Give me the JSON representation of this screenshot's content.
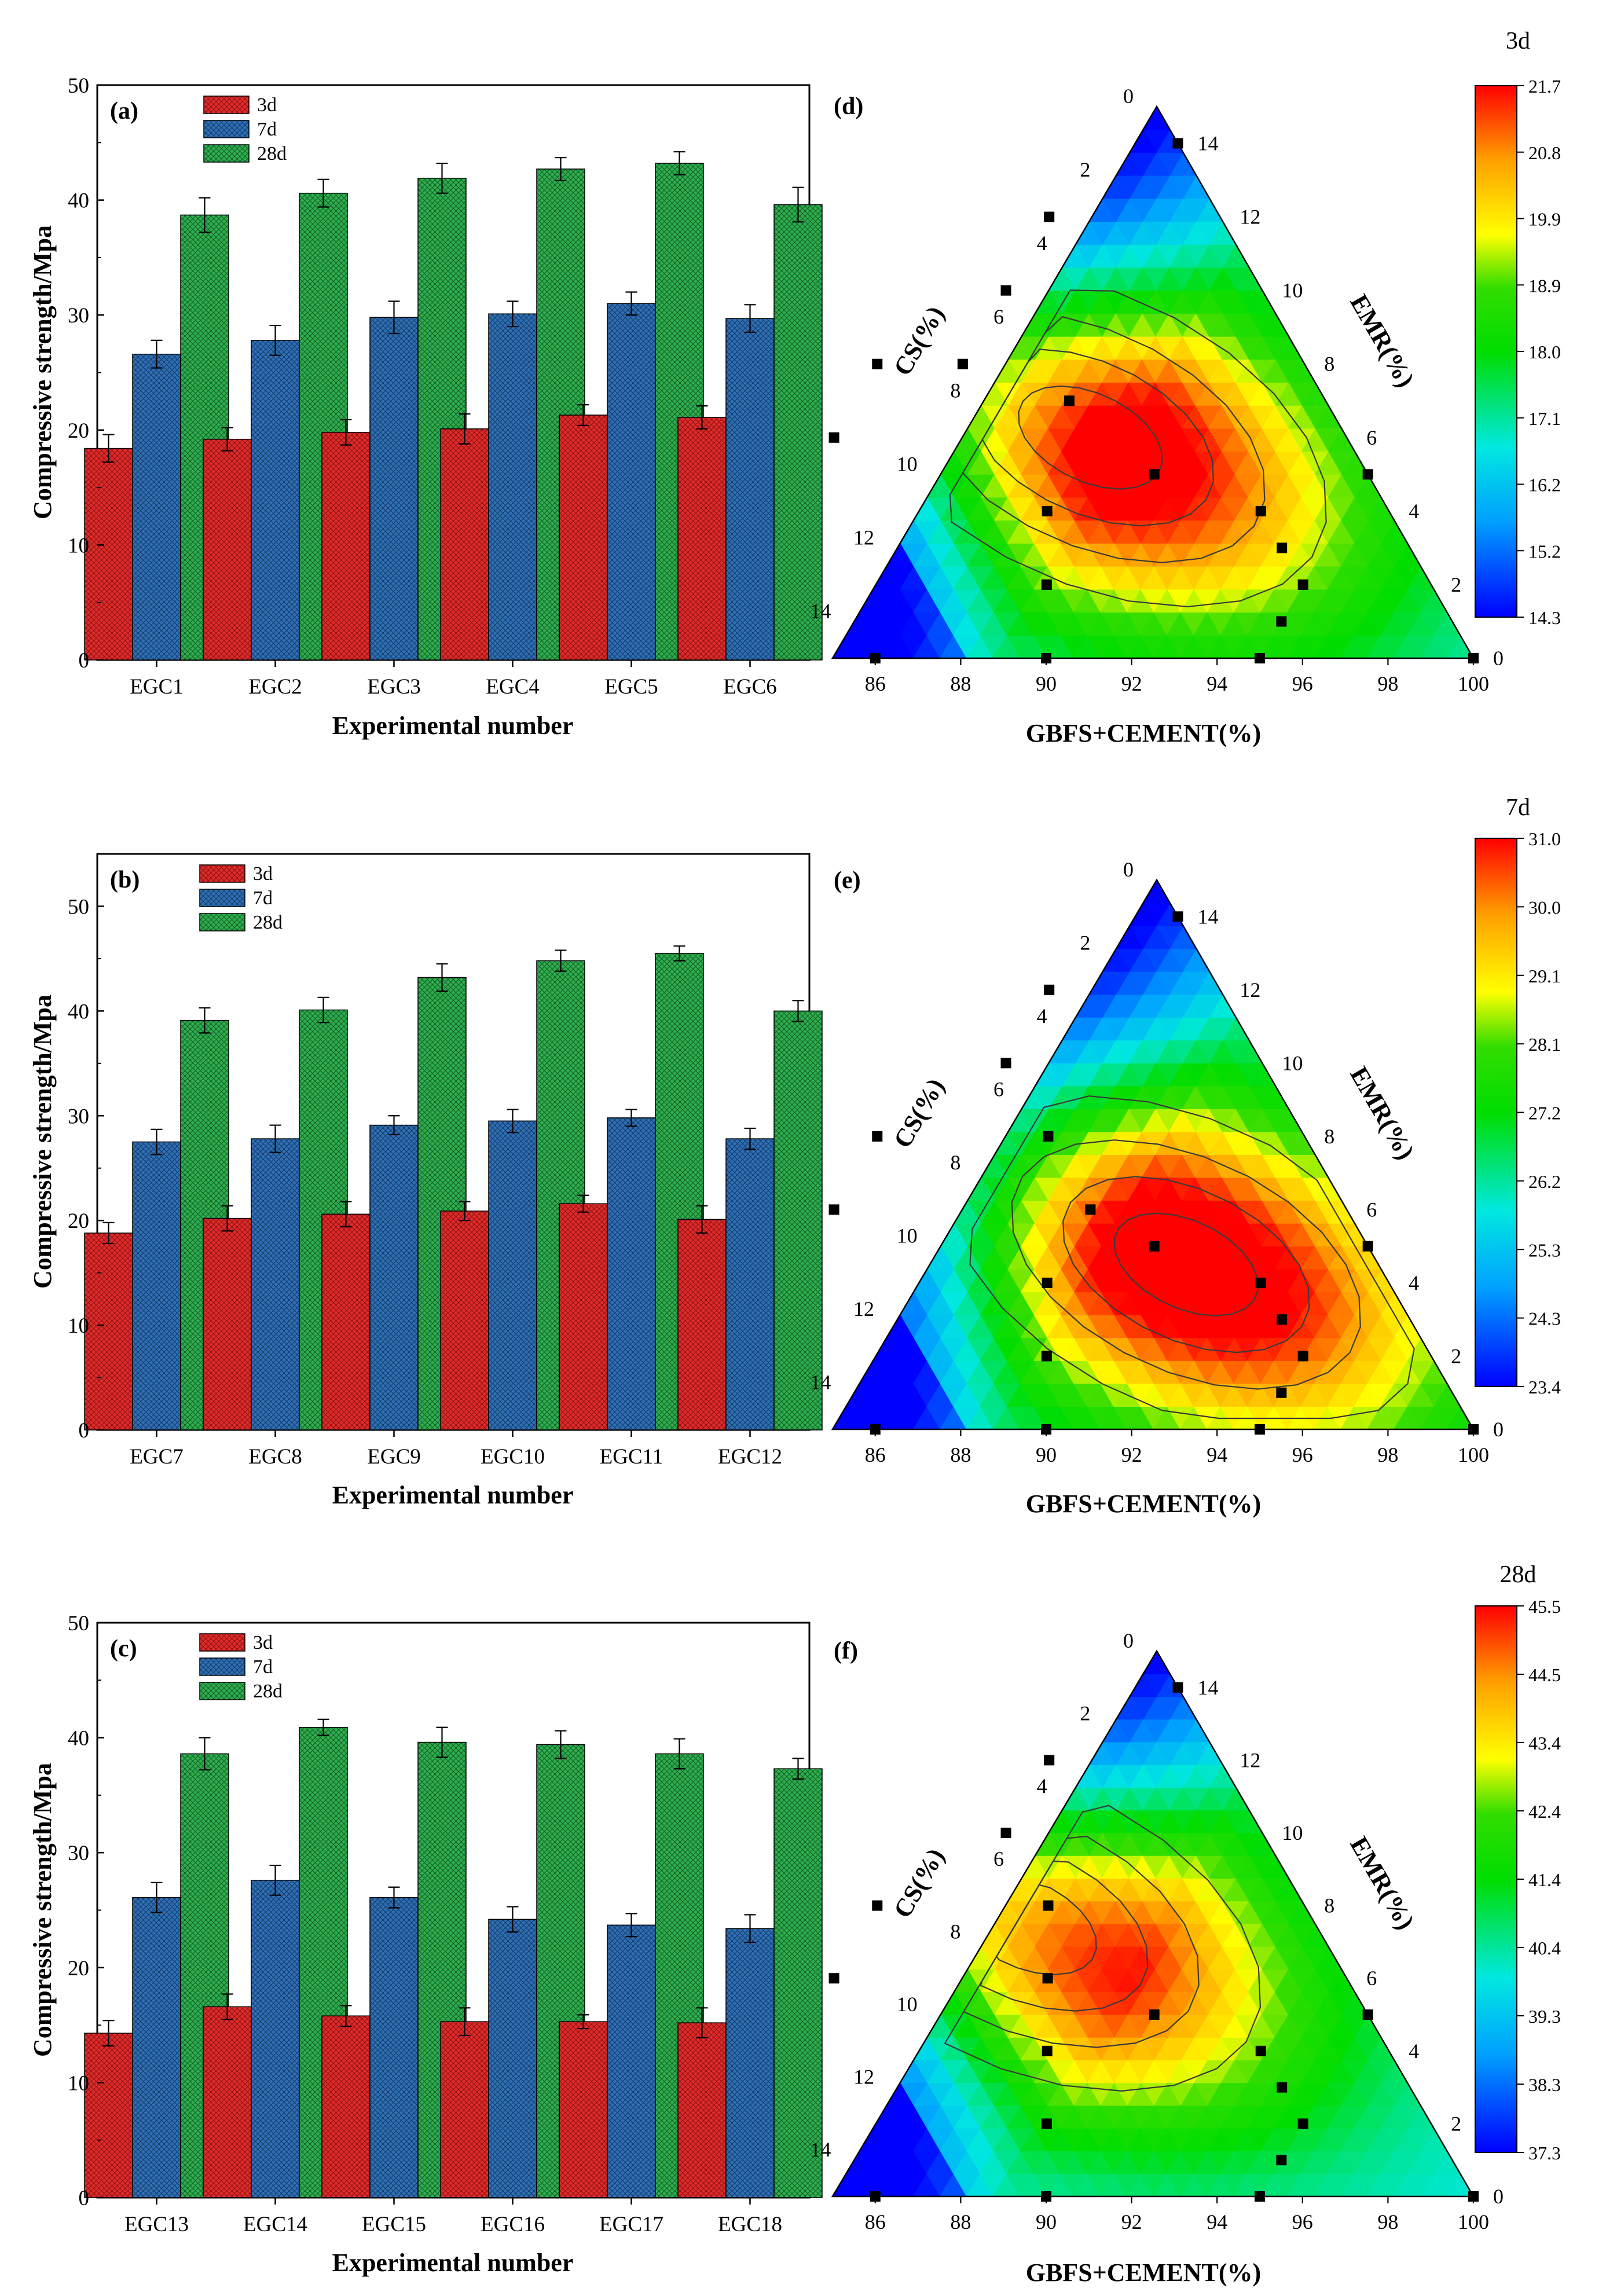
{
  "figure": {
    "legend_labels": [
      "3d",
      "7d",
      "28d"
    ],
    "ternary_axes": {
      "left_label": "CS(%)",
      "right_label": "EMR(%)",
      "bottom_label": "GBFS+CEMENT(%)",
      "left_ticks": [
        "0",
        "2",
        "4",
        "6",
        "8",
        "10",
        "12",
        "14"
      ],
      "right_ticks": [
        "0",
        "2",
        "4",
        "6",
        "8",
        "10",
        "12",
        "14"
      ],
      "bottom_ticks": [
        "86",
        "88",
        "90",
        "92",
        "94",
        "96",
        "98",
        "100"
      ]
    },
    "colors": {
      "3d": "#e02b2b",
      "7d": "#2f6fb5",
      "28d": "#2eae4f",
      "scale": [
        "#0000ff",
        "#00c8ff",
        "#00e070",
        "#00dd00",
        "#ffff00",
        "#ffa500",
        "#ff0000"
      ]
    }
  },
  "chart_data": [
    {
      "type": "bar",
      "panel": "(a)",
      "xlabel": "Experimental number",
      "ylabel": "Compressive strength/Mpa",
      "ylim": [
        0,
        50
      ],
      "yticks": [
        0,
        10,
        20,
        30,
        40,
        50
      ],
      "categories": [
        "EGC1",
        "EGC2",
        "EGC3",
        "EGC4",
        "EGC5",
        "EGC6"
      ],
      "series": [
        {
          "name": "3d",
          "values": [
            18.4,
            19.2,
            19.8,
            20.1,
            21.3,
            21.1
          ],
          "errors": [
            1.2,
            1.0,
            1.1,
            1.3,
            0.9,
            1.0
          ]
        },
        {
          "name": "7d",
          "values": [
            26.6,
            27.8,
            29.8,
            30.1,
            31.0,
            29.7
          ],
          "errors": [
            1.2,
            1.3,
            1.4,
            1.1,
            1.0,
            1.2
          ]
        },
        {
          "name": "28d",
          "values": [
            38.7,
            40.6,
            41.9,
            42.7,
            43.2,
            39.6
          ],
          "errors": [
            1.5,
            1.2,
            1.3,
            1.0,
            1.0,
            1.5
          ]
        }
      ]
    },
    {
      "type": "bar",
      "panel": "(b)",
      "xlabel": "Experimental number",
      "ylabel": "Compressive strength/Mpa",
      "ylim": [
        0,
        55
      ],
      "yticks": [
        0,
        10,
        20,
        30,
        40,
        50
      ],
      "categories": [
        "EGC7",
        "EGC8",
        "EGC9",
        "EGC10",
        "EGC11",
        "EGC12"
      ],
      "series": [
        {
          "name": "3d",
          "values": [
            18.8,
            20.2,
            20.6,
            20.9,
            21.6,
            20.1
          ],
          "errors": [
            1.0,
            1.2,
            1.2,
            0.9,
            0.8,
            1.3
          ]
        },
        {
          "name": "7d",
          "values": [
            27.5,
            27.8,
            29.1,
            29.5,
            29.8,
            27.8
          ],
          "errors": [
            1.2,
            1.3,
            0.9,
            1.1,
            0.8,
            1.0
          ]
        },
        {
          "name": "28d",
          "values": [
            39.1,
            40.1,
            43.2,
            44.8,
            45.5,
            40.0
          ],
          "errors": [
            1.2,
            1.2,
            1.3,
            1.0,
            0.7,
            1.0
          ]
        }
      ]
    },
    {
      "type": "bar",
      "panel": "(c)",
      "xlabel": "Experimental number",
      "ylabel": "Compressive strength/Mpa",
      "ylim": [
        0,
        50
      ],
      "yticks": [
        0,
        10,
        20,
        30,
        40,
        50
      ],
      "categories": [
        "EGC13",
        "EGC14",
        "EGC15",
        "EGC16",
        "EGC17",
        "EGC18"
      ],
      "series": [
        {
          "name": "3d",
          "values": [
            14.3,
            16.6,
            15.8,
            15.3,
            15.3,
            15.2
          ],
          "errors": [
            1.1,
            1.1,
            0.9,
            1.2,
            0.6,
            1.3
          ]
        },
        {
          "name": "7d",
          "values": [
            26.1,
            27.6,
            26.1,
            24.2,
            23.7,
            23.4
          ],
          "errors": [
            1.3,
            1.3,
            0.9,
            1.1,
            1.0,
            1.2
          ]
        },
        {
          "name": "28d",
          "values": [
            38.6,
            40.9,
            39.6,
            39.4,
            38.6,
            37.3
          ],
          "errors": [
            1.4,
            0.7,
            1.3,
            1.2,
            1.3,
            0.9
          ]
        }
      ]
    },
    {
      "type": "heatmap",
      "panel": "(d)",
      "colorbar_title": "3d",
      "colorbar_ticks": [
        "21.7",
        "20.8",
        "19.9",
        "18.9",
        "18.0",
        "17.1",
        "16.2",
        "15.2",
        "14.3"
      ],
      "range": [
        14.3,
        21.7
      ],
      "hotspot": {
        "cs": 6.0,
        "emr": 6.0
      },
      "points": [
        {
          "cs": 0,
          "emr": 14
        },
        {
          "cs": 4,
          "emr": 12
        },
        {
          "cs": 6,
          "emr": 10
        },
        {
          "cs": 10,
          "emr": 8
        },
        {
          "cs": 12,
          "emr": 6
        },
        {
          "cs": 14,
          "emr": 0
        },
        {
          "cs": 10,
          "emr": 0
        },
        {
          "cs": 5,
          "emr": 0
        },
        {
          "cs": 0,
          "emr": 0
        },
        {
          "cs": 8,
          "emr": 8
        },
        {
          "cs": 6,
          "emr": 7
        },
        {
          "cs": 5,
          "emr": 5
        },
        {
          "cs": 8,
          "emr": 4
        },
        {
          "cs": 9,
          "emr": 2
        },
        {
          "cs": 3,
          "emr": 4
        },
        {
          "cs": 3,
          "emr": 3
        },
        {
          "cs": 3,
          "emr": 2
        },
        {
          "cs": 4,
          "emr": 1
        },
        {
          "cs": 0,
          "emr": 5
        }
      ]
    },
    {
      "type": "heatmap",
      "panel": "(e)",
      "colorbar_title": "7d",
      "colorbar_ticks": [
        "31.0",
        "30.0",
        "29.1",
        "28.1",
        "27.2",
        "26.2",
        "25.3",
        "24.3",
        "23.4"
      ],
      "range": [
        23.4,
        31.0
      ],
      "hotspot": {
        "cs": 4.5,
        "emr": 4.5
      },
      "points": [
        {
          "cs": 0,
          "emr": 14
        },
        {
          "cs": 4,
          "emr": 12
        },
        {
          "cs": 6,
          "emr": 10
        },
        {
          "cs": 10,
          "emr": 8
        },
        {
          "cs": 12,
          "emr": 6
        },
        {
          "cs": 14,
          "emr": 0
        },
        {
          "cs": 10,
          "emr": 0
        },
        {
          "cs": 5,
          "emr": 0
        },
        {
          "cs": 0,
          "emr": 0
        },
        {
          "cs": 6,
          "emr": 8
        },
        {
          "cs": 6,
          "emr": 6
        },
        {
          "cs": 5,
          "emr": 5
        },
        {
          "cs": 8,
          "emr": 4
        },
        {
          "cs": 9,
          "emr": 2
        },
        {
          "cs": 3,
          "emr": 4
        },
        {
          "cs": 3,
          "emr": 3
        },
        {
          "cs": 3,
          "emr": 2
        },
        {
          "cs": 4,
          "emr": 1
        },
        {
          "cs": 0,
          "emr": 5
        }
      ]
    },
    {
      "type": "heatmap",
      "panel": "(f)",
      "colorbar_title": "28d",
      "colorbar_ticks": [
        "45.5",
        "44.5",
        "43.4",
        "42.4",
        "41.4",
        "40.4",
        "39.3",
        "38.3",
        "37.3"
      ],
      "range": [
        37.3,
        45.5
      ],
      "hotspot": {
        "cs": 6.8,
        "emr": 7.5
      },
      "points": [
        {
          "cs": 0,
          "emr": 14
        },
        {
          "cs": 4,
          "emr": 12
        },
        {
          "cs": 6,
          "emr": 10
        },
        {
          "cs": 10,
          "emr": 8
        },
        {
          "cs": 12,
          "emr": 6
        },
        {
          "cs": 14,
          "emr": 0
        },
        {
          "cs": 10,
          "emr": 0
        },
        {
          "cs": 5,
          "emr": 0
        },
        {
          "cs": 0,
          "emr": 0
        },
        {
          "cs": 6,
          "emr": 8
        },
        {
          "cs": 7,
          "emr": 6
        },
        {
          "cs": 5,
          "emr": 5
        },
        {
          "cs": 8,
          "emr": 4
        },
        {
          "cs": 9,
          "emr": 2
        },
        {
          "cs": 3,
          "emr": 4
        },
        {
          "cs": 3,
          "emr": 3
        },
        {
          "cs": 3,
          "emr": 2
        },
        {
          "cs": 4,
          "emr": 1
        },
        {
          "cs": 0,
          "emr": 5
        }
      ]
    }
  ]
}
